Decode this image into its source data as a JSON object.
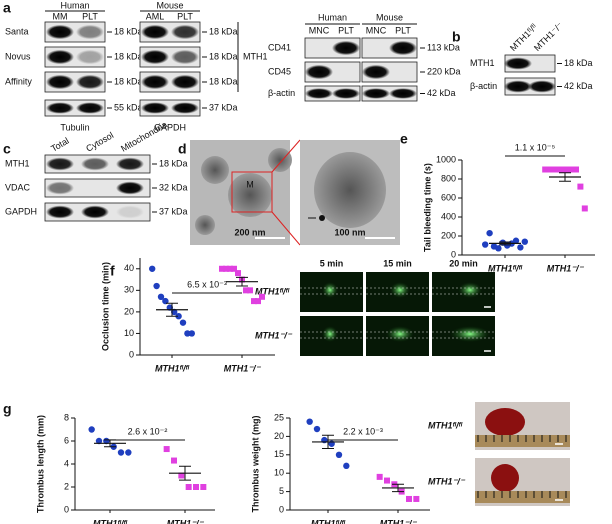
{
  "panel_labels": [
    "a",
    "b",
    "c",
    "d",
    "e",
    "f",
    "g"
  ],
  "blot_a_left": {
    "groups": [
      {
        "name": "Human",
        "lanes": [
          "MM",
          "PLT"
        ]
      },
      {
        "name": "Mouse",
        "lanes": [
          "AML",
          "PLT"
        ]
      }
    ],
    "rows": [
      "Santa",
      "Novus",
      "Affinity"
    ],
    "row_sizes": [
      [
        "18 kDa",
        "18 kDa"
      ],
      [
        "18 kDa",
        "18 kDa"
      ],
      [
        "18 kDa",
        "18 kDa"
      ]
    ],
    "target": "MTH1",
    "loading": [
      "Tubulin",
      "GAPDH"
    ],
    "loading_sizes": [
      "55 kDa",
      "37 kDa"
    ]
  },
  "blot_a_right": {
    "groups": [
      {
        "name": "Human",
        "lanes": [
          "MNC",
          "PLT"
        ]
      },
      {
        "name": "Mouse",
        "lanes": [
          "MNC",
          "PLT"
        ]
      }
    ],
    "rows": [
      "CD41",
      "CD45",
      "β-actin"
    ],
    "sizes": [
      "113 kDa",
      "220 kDa",
      "42 kDa"
    ]
  },
  "blot_b": {
    "lanes": [
      "MTH1ᶠˡ/ᶠˡ",
      "MTH1⁻/⁻"
    ],
    "rows": [
      "MTH1",
      "β-actin"
    ],
    "sizes": [
      "18 kDa",
      "42 kDa"
    ]
  },
  "blot_c": {
    "lanes": [
      "Total",
      "Cytosol",
      "Mitochondria"
    ],
    "rows": [
      "MTH1",
      "VDAC",
      "GAPDH"
    ],
    "sizes": [
      "18 kDa",
      "32 kDa",
      "37 kDa"
    ]
  },
  "em_d": {
    "label": "M",
    "scales": [
      "200 nm",
      "100 nm"
    ]
  },
  "micrographs_f": {
    "times": [
      "5 min",
      "15 min",
      "20 min"
    ],
    "rows": [
      "MTH1ᶠˡ/ᶠˡ",
      "MTH1⁻/⁻"
    ]
  },
  "photos_g": {
    "rows": [
      "MTH1ᶠˡ/ᶠˡ",
      "MTH1⁻/⁻"
    ]
  },
  "chart_data": [
    {
      "type": "scatter",
      "ylabel": "Tail bleeding time (s)",
      "categories": [
        "MTH1ᶠˡ/ᶠˡ",
        "MTH1⁻/⁻"
      ],
      "annotation": "1.1 x 10⁻⁵",
      "ylim": [
        0,
        1000
      ],
      "yticks": [
        0,
        200,
        400,
        600,
        800,
        1000
      ],
      "series": [
        {
          "color": "#1f3fbf",
          "marker": "circle",
          "values": [
            110,
            230,
            90,
            70,
            130,
            100,
            120,
            150,
            80,
            140
          ],
          "mean": 122,
          "sem": 15
        },
        {
          "color": "#e040e0",
          "marker": "square",
          "values": [
            900,
            900,
            900,
            900,
            900,
            900,
            900,
            900,
            720,
            490
          ],
          "mean": 821,
          "sem": 45
        }
      ]
    },
    {
      "type": "scatter",
      "ylabel": "Occlusion time (min)",
      "categories": [
        "MTH1ᶠˡ/ᶠˡ",
        "MTH1⁻/⁻"
      ],
      "annotation": "6.5 x 10⁻³",
      "ylim": [
        0,
        45
      ],
      "yticks": [
        0,
        10,
        20,
        30,
        40
      ],
      "series": [
        {
          "color": "#1f3fbf",
          "marker": "circle",
          "values": [
            40,
            32,
            27,
            25,
            22,
            20,
            18,
            15,
            10,
            10
          ],
          "mean": 21,
          "sem": 3
        },
        {
          "color": "#e040e0",
          "marker": "square",
          "values": [
            40,
            40,
            40,
            40,
            38,
            35,
            30,
            30,
            25,
            25,
            27
          ],
          "mean": 34,
          "sem": 2
        }
      ]
    },
    {
      "type": "scatter",
      "ylabel": "Thrombus length (mm)",
      "categories": [
        "MTH1ᶠˡ/ᶠˡ",
        "MTH1⁻/⁻"
      ],
      "annotation": "2.6 x 10⁻²",
      "ylim": [
        0,
        8
      ],
      "yticks": [
        0,
        2,
        4,
        6,
        8
      ],
      "series": [
        {
          "color": "#1f3fbf",
          "marker": "circle",
          "values": [
            7.0,
            6.0,
            6.0,
            5.5,
            5.0,
            5.0
          ],
          "mean": 5.8,
          "sem": 0.3
        },
        {
          "color": "#e040e0",
          "marker": "square",
          "values": [
            5.3,
            4.3,
            3.0,
            2.0,
            2.0,
            2.0
          ],
          "mean": 3.2,
          "sem": 0.6
        }
      ]
    },
    {
      "type": "scatter",
      "ylabel": "Thrombus weight (mg)",
      "categories": [
        "MTH1ᶠˡ/ᶠˡ",
        "MTH1⁻/⁻"
      ],
      "annotation": "2.2 x 10⁻³",
      "ylim": [
        0,
        25
      ],
      "yticks": [
        0,
        5,
        10,
        15,
        20,
        25
      ],
      "series": [
        {
          "color": "#1f3fbf",
          "marker": "circle",
          "values": [
            24,
            22,
            19,
            18,
            15,
            12
          ],
          "mean": 18.5,
          "sem": 1.8
        },
        {
          "color": "#e040e0",
          "marker": "square",
          "values": [
            9,
            8,
            7,
            5,
            3,
            3
          ],
          "mean": 6,
          "sem": 1.0
        }
      ]
    }
  ]
}
